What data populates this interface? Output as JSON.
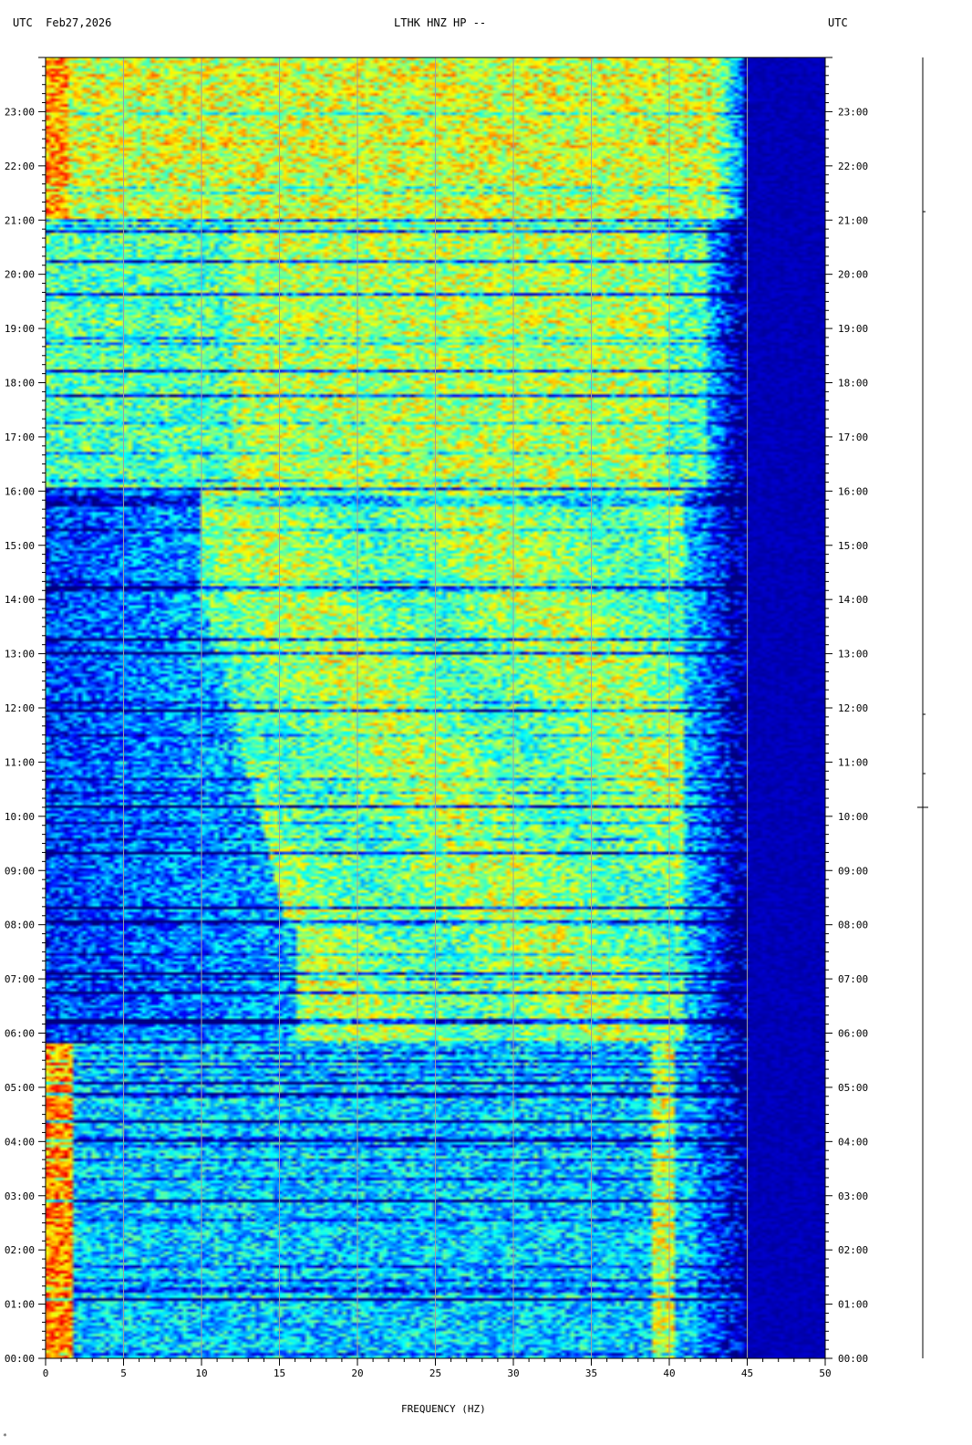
{
  "header": {
    "left": "UTC  Feb27,2026",
    "center": "LTHK HNZ HP --",
    "right": "UTC"
  },
  "chart_data": {
    "type": "heatmap",
    "title": "LTHK HNZ HP --",
    "date": "Feb27,2026",
    "xlabel": "FREQUENCY (HZ)",
    "ylabel": "UTC",
    "xlim": [
      0,
      50
    ],
    "ylim": [
      "00:00",
      "24:00"
    ],
    "x_ticks": [
      0,
      5,
      10,
      15,
      20,
      25,
      30,
      35,
      40,
      45,
      50
    ],
    "y_ticks": [
      "00:00",
      "01:00",
      "02:00",
      "03:00",
      "04:00",
      "05:00",
      "06:00",
      "07:00",
      "08:00",
      "09:00",
      "10:00",
      "11:00",
      "12:00",
      "13:00",
      "14:00",
      "15:00",
      "16:00",
      "17:00",
      "18:00",
      "19:00",
      "20:00",
      "21:00",
      "22:00",
      "23:00"
    ],
    "colormap": [
      "#00007f",
      "#0000ff",
      "#0080ff",
      "#00ffff",
      "#80ff80",
      "#ffff00",
      "#ff8000",
      "#ff0000",
      "#7f0000"
    ],
    "grid": "vertical lines every 5 Hz"
  },
  "corner_mark": "*"
}
